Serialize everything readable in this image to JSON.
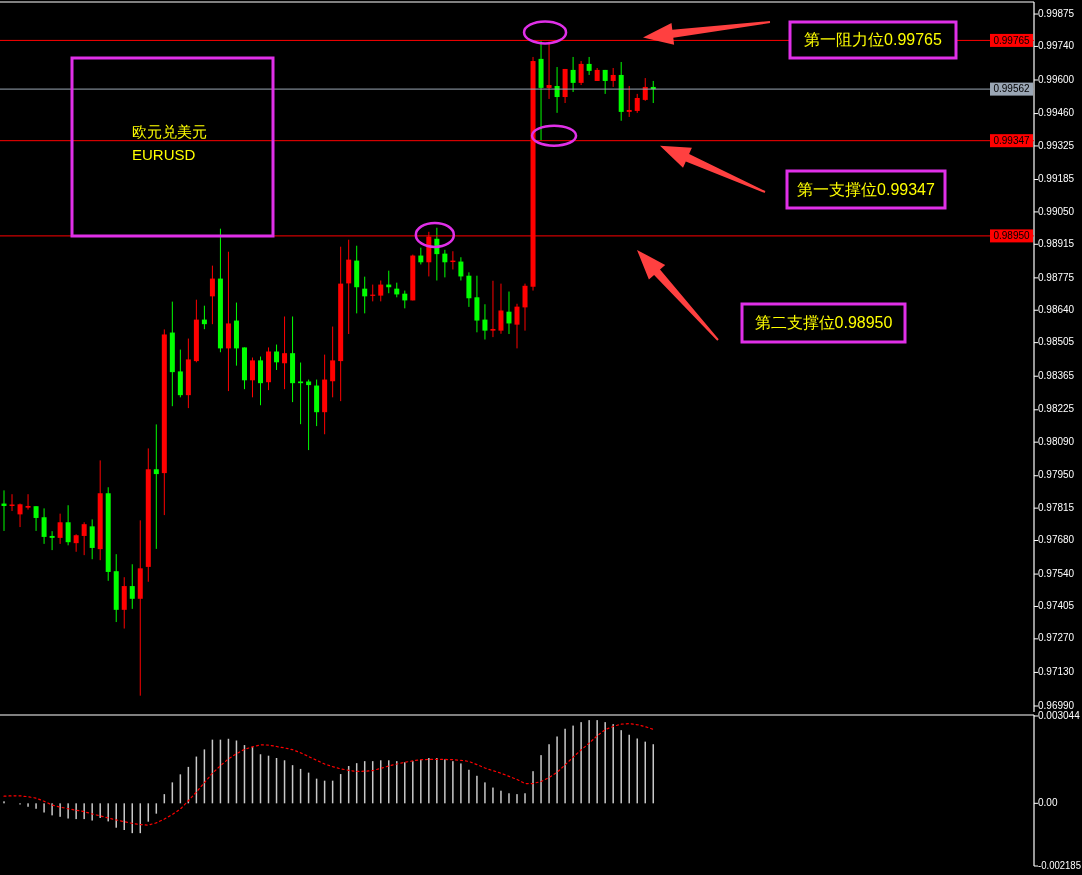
{
  "chart_data": [
    {
      "type": "candlestick",
      "tick_labels": "y",
      "grid": false,
      "categories": [
        null,
        null,
        null,
        null,
        null,
        null,
        null,
        null,
        null,
        null,
        null,
        null,
        null,
        null,
        null,
        null,
        null,
        null,
        null,
        null,
        null,
        null,
        null,
        null,
        null,
        null,
        null,
        null,
        null,
        null,
        null,
        null,
        null,
        null,
        null,
        null,
        null,
        null,
        null,
        null,
        null,
        null,
        null,
        null,
        null,
        null,
        null,
        null,
        null,
        null,
        null,
        null,
        null,
        null,
        null,
        null,
        null,
        null,
        null,
        null,
        null,
        null,
        null,
        null,
        null,
        null,
        null,
        null,
        null,
        null,
        null,
        null,
        null,
        null,
        null,
        null,
        null,
        null,
        null,
        null,
        null,
        null,
        null,
        null,
        null,
        null,
        null,
        null,
        null,
        null,
        null,
        null,
        null,
        null,
        null,
        null,
        null,
        null,
        null,
        null,
        null,
        null,
        null,
        null,
        null,
        null,
        null,
        null,
        null,
        null,
        null,
        null,
        null,
        null,
        null,
        null,
        null,
        null,
        null,
        null,
        null,
        null,
        null,
        null,
        null,
        null,
        null,
        null,
        null
      ],
      "ohlc": [
        [
          0.97834,
          0.97889,
          0.9772,
          0.97824
        ],
        [
          0.97824,
          0.97873,
          0.97803,
          0.9783
        ],
        [
          0.97789,
          0.97834,
          0.97736,
          0.97831
        ],
        [
          0.97817,
          0.97873,
          0.97809,
          0.97824
        ],
        [
          0.97823,
          0.97823,
          0.9772,
          0.97774
        ],
        [
          0.97777,
          0.97814,
          0.97666,
          0.97695
        ],
        [
          0.97699,
          0.97719,
          0.9764,
          0.97691
        ],
        [
          0.97691,
          0.97792,
          0.97666,
          0.97756
        ],
        [
          0.97756,
          0.97827,
          0.9766,
          0.97673
        ],
        [
          0.97669,
          0.97706,
          0.97633,
          0.97702
        ],
        [
          0.97699,
          0.97756,
          0.97619,
          0.97748
        ],
        [
          0.97739,
          0.97768,
          0.97602,
          0.97649
        ],
        [
          0.97644,
          0.98014,
          0.97598,
          0.97877
        ],
        [
          0.97877,
          0.97902,
          0.97512,
          0.97549
        ],
        [
          0.97552,
          0.97623,
          0.9734,
          0.97391
        ],
        [
          0.97391,
          0.97527,
          0.97313,
          0.9749
        ],
        [
          0.9749,
          0.97581,
          0.97395,
          0.97437
        ],
        [
          0.97437,
          0.97764,
          0.97033,
          0.97564
        ],
        [
          0.9757,
          0.98064,
          0.97508,
          0.97977
        ],
        [
          0.97977,
          0.98164,
          0.97645,
          0.97957
        ],
        [
          0.97961,
          0.9856,
          0.97786,
          0.98539
        ],
        [
          0.98547,
          0.98676,
          0.9824,
          0.98382
        ],
        [
          0.98385,
          0.98476,
          0.98277,
          0.98286
        ],
        [
          0.98286,
          0.98522,
          0.98232,
          0.98435
        ],
        [
          0.98428,
          0.98684,
          0.98423,
          0.98601
        ],
        [
          0.98601,
          0.98659,
          0.98561,
          0.98582
        ],
        [
          0.98698,
          0.98826,
          0.98582,
          0.98772
        ],
        [
          0.98772,
          0.9898,
          0.98465,
          0.98481
        ],
        [
          0.98481,
          0.98884,
          0.98303,
          0.98585
        ],
        [
          0.98597,
          0.98672,
          0.98409,
          0.98481
        ],
        [
          0.98485,
          0.98485,
          0.98311,
          0.98348
        ],
        [
          0.98348,
          0.98443,
          0.98277,
          0.98431
        ],
        [
          0.98431,
          0.98447,
          0.98244,
          0.98336
        ],
        [
          0.9834,
          0.98485,
          0.98307,
          0.98468
        ],
        [
          0.98468,
          0.98497,
          0.98391,
          0.98423
        ],
        [
          0.98419,
          0.98614,
          0.98311,
          0.98461
        ],
        [
          0.98461,
          0.98614,
          0.98257,
          0.98336
        ],
        [
          0.98343,
          0.98422,
          0.98165,
          0.98336
        ],
        [
          0.98343,
          0.98351,
          0.98057,
          0.98328
        ],
        [
          0.98326,
          0.98351,
          0.98157,
          0.98215
        ],
        [
          0.98215,
          0.98455,
          0.98123,
          0.98351
        ],
        [
          0.98344,
          0.98572,
          0.98277,
          0.98431
        ],
        [
          0.98428,
          0.98905,
          0.98261,
          0.98751
        ],
        [
          0.98752,
          0.98934,
          0.98541,
          0.98851
        ],
        [
          0.98847,
          0.98909,
          0.98627,
          0.98736
        ],
        [
          0.9873,
          0.9878,
          0.98627,
          0.98698
        ],
        [
          0.98701,
          0.98747,
          0.98677,
          0.98705
        ],
        [
          0.98701,
          0.98764,
          0.98677,
          0.98747
        ],
        [
          0.98747,
          0.98805,
          0.98711,
          0.98736
        ],
        [
          0.9873,
          0.98755,
          0.98694,
          0.98706
        ],
        [
          0.98709,
          0.98722,
          0.98648,
          0.98681
        ],
        [
          0.98681,
          0.98872,
          0.98681,
          0.98868
        ],
        [
          0.98868,
          0.98901,
          0.98831,
          0.9884
        ],
        [
          0.9884,
          0.98967,
          0.98781,
          0.98947
        ],
        [
          0.98938,
          0.98984,
          0.98764,
          0.98874
        ],
        [
          0.98876,
          0.98892,
          0.98777,
          0.9884
        ],
        [
          0.98841,
          0.98886,
          0.9881,
          0.98847
        ],
        [
          0.98843,
          0.98861,
          0.98764,
          0.98781
        ],
        [
          0.98784,
          0.98798,
          0.98654,
          0.9869
        ],
        [
          0.98694,
          0.98784,
          0.98548,
          0.98597
        ],
        [
          0.98601,
          0.98665,
          0.98518,
          0.98555
        ],
        [
          0.98555,
          0.98763,
          0.98528,
          0.98562
        ],
        [
          0.98555,
          0.98751,
          0.98542,
          0.98639
        ],
        [
          0.98634,
          0.98718,
          0.98541,
          0.98585
        ],
        [
          0.9858,
          0.98667,
          0.98481,
          0.98655
        ],
        [
          0.98652,
          0.98751,
          0.98555,
          0.98742
        ],
        [
          0.98738,
          0.99696,
          0.98722,
          0.99679
        ],
        [
          0.99688,
          0.99765,
          0.99347,
          0.99567
        ],
        [
          0.99567,
          0.9976,
          0.99521,
          0.99579
        ],
        [
          0.99575,
          0.99654,
          0.99463,
          0.99529
        ],
        [
          0.99529,
          0.99646,
          0.99504,
          0.99646
        ],
        [
          0.99642,
          0.99696,
          0.9955,
          0.99588
        ],
        [
          0.99588,
          0.99679,
          0.99579,
          0.99667
        ],
        [
          0.99667,
          0.99696,
          0.99621,
          0.99638
        ],
        [
          0.99596,
          0.9965,
          0.99596,
          0.99642
        ],
        [
          0.99642,
          0.99642,
          0.99542,
          0.99596
        ],
        [
          0.99596,
          0.9965,
          0.99571,
          0.99621
        ],
        [
          0.99621,
          0.99675,
          0.9943,
          0.99467
        ],
        [
          0.99467,
          0.99575,
          0.99446,
          0.99475
        ],
        [
          0.99471,
          0.99542,
          0.99463,
          0.99525
        ],
        [
          0.99517,
          0.99608,
          0.99513,
          0.99571
        ],
        [
          0.99571,
          0.99596,
          0.99504,
          0.99562
        ],
        null,
        null,
        null,
        null,
        null,
        null,
        null,
        null,
        null,
        null,
        null,
        null,
        null,
        null,
        null,
        null,
        null,
        null,
        null,
        null,
        null,
        null,
        null,
        null,
        null,
        null,
        null,
        null,
        null,
        null,
        null,
        null,
        null,
        null,
        null,
        null,
        null,
        null,
        null,
        null,
        null,
        null,
        null,
        null,
        null,
        null,
        null
      ],
      "colors": [
        "#00ff00",
        "#ff0000",
        "#ff0000",
        "#ff0000",
        "#00ff00",
        "#00ff00",
        "#00ff00",
        "#ff0000",
        "#00ff00",
        "#ff0000",
        "#ff0000",
        "#00ff00",
        "#ff0000",
        "#00ff00",
        "#00ff00",
        "#ff0000",
        "#00ff00",
        "#ff0000",
        "#ff0000",
        "#00ff00",
        "#ff0000",
        "#00ff00",
        "#00ff00",
        "#ff0000",
        "#ff0000",
        "#00ff00",
        "#ff0000",
        "#00ff00",
        "#ff0000",
        "#00ff00",
        "#00ff00",
        "#ff0000",
        "#00ff00",
        "#ff0000",
        "#00ff00",
        "#ff0000",
        "#00ff00",
        "#00ff00",
        "#00ff00",
        "#00ff00",
        "#ff0000",
        "#ff0000",
        "#ff0000",
        "#ff0000",
        "#00ff00",
        "#00ff00",
        "#ff0000",
        "#ff0000",
        "#00ff00",
        "#00ff00",
        "#00ff00",
        "#ff0000",
        "#00ff00",
        "#ff0000",
        "#00ff00",
        "#00ff00",
        "#ff0000",
        "#00ff00",
        "#00ff00",
        "#00ff00",
        "#00ff00",
        "#ff0000",
        "#ff0000",
        "#00ff00",
        "#ff0000",
        "#ff0000",
        "#ff0000",
        "#00ff00",
        "#ff0000",
        "#00ff00",
        "#ff0000",
        "#00ff00",
        "#ff0000",
        "#00ff00",
        "#ff0000",
        "#00ff00",
        "#ff0000",
        "#00ff00",
        "#ff0000",
        "#ff0000",
        "#ff0000",
        "#00ff00",
        null,
        null,
        null,
        null,
        null,
        null,
        null,
        null,
        null,
        null,
        null,
        null,
        null,
        null,
        null,
        null,
        null,
        null,
        null,
        null,
        null,
        null,
        null,
        null,
        null,
        null,
        null,
        null,
        null,
        null,
        null,
        null,
        null,
        null,
        null,
        null,
        null,
        null,
        null,
        null,
        null,
        null,
        null,
        null,
        null,
        null,
        null
      ],
      "ylim": [
        0.96965,
        0.99921
      ],
      "yticks": [
        0.99875,
        {
          "value": 0.9974,
          "label": "0.99740"
        },
        {
          "value": 0.996,
          "label": "0.99600"
        },
        {
          "value": 0.9946,
          "label": "0.99460"
        },
        0.99325,
        0.99185,
        {
          "value": 0.9905,
          "label": "0.99050"
        },
        0.98915,
        0.98775,
        {
          "value": 0.9864,
          "label": "0.98640"
        },
        0.98505,
        0.98365,
        0.98225,
        {
          "value": 0.9809,
          "label": "0.98090"
        },
        {
          "value": 0.9795,
          "label": "0.97950"
        },
        0.97815,
        {
          "value": 0.9768,
          "label": "0.97680"
        },
        {
          "value": 0.9754,
          "label": "0.97540"
        },
        0.97405,
        {
          "value": 0.9727,
          "label": "0.97270"
        },
        {
          "value": 0.9713,
          "label": "0.97130"
        },
        {
          "value": 0.9699,
          "label": "0.96990"
        }
      ],
      "ref_lines": [
        {
          "axis": "y",
          "value": 0.99765,
          "label": "0.99765",
          "color": "#ff0000"
        },
        {
          "axis": "y",
          "value": 0.99562,
          "label": "0.99562",
          "color": "#9aa6b4"
        },
        {
          "axis": "y",
          "value": 0.99347,
          "label": "0.99347",
          "color": "#ff0000"
        },
        {
          "axis": "y",
          "value": 0.9895,
          "label": "0.98950",
          "color": "#ff0000"
        }
      ],
      "annotations": [
        "欧元兑美元",
        "EURUSD",
        "第一阻力位0.99765",
        "第一支撑位0.99347",
        "第二支撑位0.98950"
      ]
    },
    {
      "type": "bar",
      "tick_labels": "y",
      "grid": false,
      "categories": [
        null,
        null,
        null,
        null,
        null,
        null,
        null,
        null,
        null,
        null,
        null,
        null,
        null,
        null,
        null,
        null,
        null,
        null,
        null,
        null,
        null,
        null,
        null,
        null,
        null,
        null,
        null,
        null,
        null,
        null,
        null,
        null,
        null,
        null,
        null,
        null,
        null,
        null,
        null,
        null,
        null,
        null,
        null,
        null,
        null,
        null,
        null,
        null,
        null,
        null,
        null,
        null,
        null,
        null,
        null,
        null,
        null,
        null,
        null,
        null,
        null,
        null,
        null,
        null,
        null,
        null,
        null,
        null,
        null,
        null,
        null,
        null,
        null,
        null,
        null,
        null,
        null,
        null,
        null,
        null,
        null,
        null,
        null,
        null,
        null,
        null,
        null,
        null,
        null,
        null,
        null,
        null,
        null,
        null,
        null,
        null,
        null,
        null,
        null,
        null,
        null,
        null,
        null,
        null,
        null,
        null,
        null,
        null,
        null,
        null,
        null,
        null,
        null,
        null,
        null,
        null,
        null,
        null,
        null,
        null,
        null,
        null,
        null,
        null,
        null,
        null,
        null,
        null,
        null
      ],
      "ylim": [
        -0.002185,
        0.003044
      ],
      "yticks": [
        0.003044,
        {
          "value": 0,
          "label": "0.00"
        },
        -0.002185
      ],
      "series": [
        {
          "color": "#c8c8c8",
          "values": [
            7e-05,
            null,
            -4e-05,
            -0.00012,
            -0.00019,
            -0.00032,
            -0.00042,
            -0.00047,
            -0.00053,
            -0.00055,
            -0.00055,
            -0.0006,
            -0.00051,
            -0.00063,
            -0.00085,
            -0.00093,
            -0.00104,
            -0.00104,
            -0.00064,
            -0.00036,
            0.00032,
            0.00073,
            0.00101,
            0.00127,
            0.00163,
            0.00188,
            0.00222,
            0.00222,
            0.00225,
            0.00219,
            0.00203,
            0.00197,
            0.00171,
            0.00166,
            0.00158,
            0.0015,
            0.00133,
            0.0012,
            0.00107,
            0.00086,
            0.00079,
            0.00079,
            0.00102,
            0.0013,
            0.0014,
            0.00147,
            0.00147,
            0.0015,
            0.0015,
            0.00147,
            0.00143,
            0.00147,
            0.00152,
            0.00158,
            0.00158,
            0.00153,
            0.00147,
            0.00139,
            0.00117,
            0.00096,
            0.00073,
            0.00055,
            0.00044,
            0.00035,
            0.00032,
            0.00035,
            0.00112,
            0.00168,
            0.00206,
            0.00233,
            0.0026,
            0.00271,
            0.00283,
            0.0029,
            0.0029,
            0.00283,
            0.00276,
            0.00255,
            0.00239,
            0.00226,
            0.00215,
            0.00206,
            null,
            null,
            null,
            null,
            null,
            null,
            null,
            null,
            null,
            null,
            null,
            null,
            null,
            null,
            null,
            null,
            null,
            null,
            null,
            null,
            null,
            null,
            null,
            null,
            null,
            null,
            null,
            null,
            null,
            null,
            null,
            null,
            null,
            null,
            null,
            null,
            null,
            null,
            null,
            null,
            null,
            null,
            null,
            null,
            null,
            null,
            null
          ]
        },
        {
          "type": "line",
          "color": "#ff0000",
          "line_style": "dotted",
          "values": [
            0.00025,
            0.00026,
            0.00026,
            0.00023,
            0.00018,
            7e-05,
            -6e-05,
            -0.00013,
            -0.00019,
            -0.00024,
            -0.00029,
            -0.00037,
            -0.00044,
            -0.00051,
            -0.00058,
            -0.00064,
            -0.0007,
            -0.00074,
            -0.00076,
            -0.00068,
            -0.00055,
            -0.00039,
            -0.0002,
            9e-05,
            0.00039,
            0.00072,
            0.00105,
            0.00131,
            0.00155,
            0.00173,
            0.00188,
            0.00197,
            0.00204,
            0.00203,
            0.00198,
            0.00193,
            0.00187,
            0.00176,
            0.00163,
            0.0015,
            0.00137,
            0.00128,
            0.0012,
            0.00115,
            0.00111,
            0.00112,
            0.00114,
            0.00122,
            0.0013,
            0.00137,
            0.00143,
            0.00148,
            0.00152,
            0.00153,
            0.00153,
            0.00153,
            0.00152,
            0.0015,
            0.00146,
            0.00135,
            0.00123,
            0.00114,
            0.00105,
            0.00094,
            0.00083,
            0.00069,
            0.00069,
            0.00076,
            0.0009,
            0.00108,
            0.00134,
            0.00161,
            0.00186,
            0.0021,
            0.00235,
            0.00257,
            0.00268,
            0.00276,
            0.00278,
            0.00274,
            0.00267,
            0.00258,
            null,
            null,
            null,
            null,
            null,
            null,
            null,
            null,
            null,
            null,
            null,
            null,
            null,
            null,
            null,
            null,
            null,
            null,
            null,
            null,
            null,
            null,
            null,
            null,
            null,
            null,
            null,
            null,
            null,
            null,
            null,
            null,
            null,
            null,
            null,
            null,
            null,
            null,
            null,
            null,
            null,
            null,
            null,
            null,
            null,
            null,
            null
          ]
        }
      ]
    }
  ]
}
